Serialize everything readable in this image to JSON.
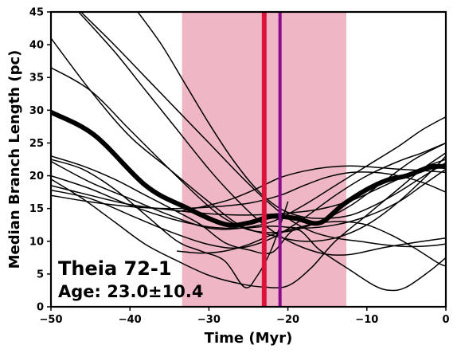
{
  "chart_data": {
    "type": "line",
    "xlabel": "Time (Myr)",
    "ylabel": "Median Branch Length (pc)",
    "xlim": [
      -50,
      0
    ],
    "ylim": [
      0,
      45
    ],
    "xticks": [
      -50,
      -40,
      -30,
      -20,
      -10,
      0
    ],
    "xtick_labels": [
      "−50",
      "−40",
      "−30",
      "−20",
      "−10",
      "0"
    ],
    "yticks": [
      0,
      5,
      10,
      15,
      20,
      25,
      30,
      35,
      40,
      45
    ],
    "ytick_labels": [
      "0",
      "5",
      "10",
      "15",
      "20",
      "25",
      "30",
      "35",
      "40",
      "45"
    ],
    "grid": false,
    "annotations": [
      {
        "text": "Theia 72-1",
        "style": "title"
      },
      {
        "text": "Age: 23.0±10.4",
        "style": "subtitle"
      }
    ],
    "age_band": {
      "x_start": -33.4,
      "x_end": -12.6,
      "color": "#e0708c"
    },
    "vlines": [
      {
        "x": -23.0,
        "color": "#dc143c"
      },
      {
        "x": -21.0,
        "color": "#8b0a8b"
      }
    ],
    "median_series": {
      "color": "#000000",
      "x": [
        -50,
        -44.5,
        -38,
        -33,
        -28,
        -25,
        -22,
        -19,
        -16,
        -13,
        -10,
        -7.5,
        -5,
        -2,
        0
      ],
      "y": [
        29.7,
        26.2,
        18.5,
        15.2,
        12.6,
        12.8,
        13.8,
        13.5,
        12.8,
        15.6,
        17.9,
        19.3,
        20.0,
        21.3,
        21.4
      ]
    },
    "series": [
      {
        "x": [
          -50,
          -45,
          -40,
          -35,
          -30,
          -26,
          -22,
          -18,
          -14,
          -10,
          -6,
          -2,
          0
        ],
        "y": [
          41,
          33,
          26,
          21,
          16,
          12.4,
          10.9,
          10.0,
          10.5,
          12.5,
          16,
          20.5,
          23.0
        ]
      },
      {
        "x": [
          -50,
          -45,
          -40,
          -35,
          -30,
          -27,
          -24,
          -20,
          -16,
          -12,
          -8,
          -4,
          0
        ],
        "y": [
          36.5,
          33,
          27,
          21,
          15.3,
          12.8,
          11.5,
          11.5,
          13.0,
          15.5,
          19,
          22.5,
          25.0
        ]
      },
      {
        "x": [
          -46.5,
          -42,
          -38,
          -34,
          -30,
          -27,
          -24,
          -21,
          -18,
          -15,
          -12,
          -8,
          -4,
          0
        ],
        "y": [
          45,
          39,
          33,
          27,
          21,
          17,
          13.5,
          10.8,
          9.0,
          8.0,
          8.0,
          9.0,
          9.8,
          10.5
        ]
      },
      {
        "x": [
          -46.2,
          -42,
          -38,
          -34,
          -30,
          -26,
          -23,
          -20,
          -17,
          -14,
          -11,
          -8,
          -5,
          -2,
          0
        ],
        "y": [
          45,
          40,
          35,
          30,
          25,
          20,
          16.5,
          13.5,
          11.5,
          10.5,
          10.0,
          9.5,
          9.2,
          9.3,
          9.6
        ]
      },
      {
        "x": [
          -39,
          -36,
          -33,
          -30,
          -27,
          -24,
          -21,
          -18,
          -15,
          -12,
          -9,
          -6,
          -3,
          0
        ],
        "y": [
          45,
          40,
          34,
          28,
          22.5,
          18,
          15,
          13.7,
          13.5,
          14,
          15.5,
          17.5,
          19.8,
          22.0
        ]
      },
      {
        "x": [
          -50,
          -46,
          -42,
          -38,
          -34,
          -31,
          -28,
          -25.5,
          -24,
          -22,
          -20
        ],
        "y": [
          22.5,
          21,
          18,
          14,
          10,
          8.5,
          7.0,
          3.0,
          4.5,
          9.0,
          16.0
        ]
      },
      {
        "x": [
          -50,
          -46,
          -42,
          -38,
          -34,
          -31,
          -28,
          -25,
          -22,
          -19,
          -16,
          -12,
          -9,
          -7,
          -5,
          -2,
          0
        ],
        "y": [
          23,
          21.5,
          19.5,
          17,
          14.5,
          12.5,
          9.8,
          8.7,
          8.3,
          11.8,
          8.7,
          5.5,
          3.2,
          2.5,
          3.0,
          5.5,
          7.5
        ]
      },
      {
        "x": [
          -50,
          -46,
          -42,
          -38,
          -34,
          -30,
          -26,
          -23,
          -20,
          -17,
          -14,
          -10,
          -6,
          -3,
          0
        ],
        "y": [
          19.5,
          16.5,
          13,
          9.5,
          7.0,
          4.8,
          3.5,
          3.0,
          3.2,
          6.0,
          10,
          14,
          18,
          21,
          23.5
        ]
      },
      {
        "x": [
          -50,
          -45,
          -40,
          -35,
          -30,
          -26,
          -22,
          -18,
          -14,
          -10,
          -6,
          -3,
          0
        ],
        "y": [
          17.8,
          16.5,
          14,
          11.5,
          9.5,
          9.0,
          10.5,
          13.5,
          17,
          20,
          22.2,
          23.5,
          25.0
        ]
      },
      {
        "x": [
          -50,
          -45,
          -40,
          -35,
          -30,
          -26,
          -22,
          -18,
          -14,
          -10,
          -6,
          -3,
          0
        ],
        "y": [
          22.2,
          19,
          16.5,
          14,
          12,
          12.0,
          13.0,
          15.5,
          18.5,
          21.5,
          24.5,
          27,
          29.0
        ]
      },
      {
        "x": [
          -50,
          -45,
          -40,
          -35,
          -30,
          -25,
          -21,
          -18,
          -15,
          -12,
          -9,
          -6,
          -3,
          0
        ],
        "y": [
          17.0,
          16,
          15.3,
          15,
          15.2,
          15.8,
          17.0,
          18.5,
          19.8,
          20.5,
          20.5,
          20.0,
          19.0,
          17.5
        ]
      },
      {
        "x": [
          -50,
          -45,
          -40,
          -35,
          -30,
          -25,
          -20,
          -16,
          -12,
          -9,
          -6,
          -3,
          0
        ],
        "y": [
          18.5,
          17,
          15.6,
          14.8,
          14.2,
          14.0,
          14.3,
          14.9,
          16.2,
          17.8,
          19.5,
          21.2,
          22.5
        ]
      },
      {
        "x": [
          -50,
          -45,
          -40,
          -35,
          -30,
          -26,
          -22,
          -18,
          -14,
          -10,
          -6,
          -3,
          0
        ],
        "y": [
          20.0,
          18,
          15.5,
          13.5,
          12.2,
          12.0,
          12.3,
          12.0,
          12.5,
          13.8,
          16,
          18.5,
          21
        ]
      },
      {
        "x": [
          -34,
          -30,
          -27,
          -24,
          -21,
          -18,
          -15,
          -12,
          -9,
          -6,
          -3,
          0
        ],
        "y": [
          14.5,
          15.5,
          16.5,
          18,
          19.7,
          20.7,
          21.3,
          21.5,
          21.3,
          21.0,
          20.8,
          20.5
        ]
      },
      {
        "x": [
          -34,
          -31,
          -28,
          -25,
          -22,
          -19,
          -16,
          -13,
          -10,
          -7,
          -4,
          -1,
          0
        ],
        "y": [
          8.5,
          8.2,
          8.5,
          9.5,
          11.0,
          12.0,
          12.8,
          13.0,
          12.5,
          11.0,
          9.0,
          6.7,
          6.2
        ]
      }
    ]
  }
}
